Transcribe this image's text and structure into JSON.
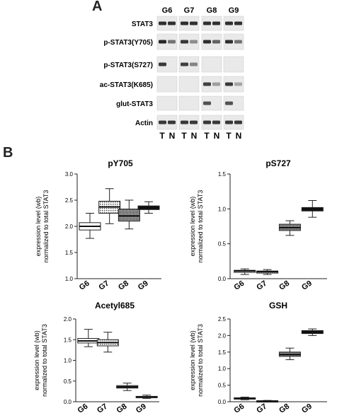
{
  "panel_a": {
    "letter": "A",
    "groups": [
      "G6",
      "G7",
      "G8",
      "G9"
    ],
    "rows": [
      "STAT3",
      "p-STAT3(Y705)",
      "p-STAT3(S727)",
      "ac-STAT3(K685)",
      "glut-STAT3",
      "Actin"
    ],
    "lane_labels": [
      [
        "T",
        "N"
      ],
      [
        "T",
        "N"
      ],
      [
        "T",
        "N"
      ],
      [
        "T",
        "N"
      ]
    ]
  },
  "panel_b": {
    "letter": "B"
  },
  "chart_data": [
    {
      "type": "box",
      "title": "pY705",
      "ylabel_line1": "expression level (wb)",
      "ylabel_line2": "normalized to total STAT3",
      "categories": [
        "G6",
        "G7",
        "G8",
        "G9"
      ],
      "ylim": [
        1.0,
        3.0
      ],
      "yticks": [
        "1.0",
        "1.5",
        "2.0",
        "2.5",
        "3.0"
      ],
      "boxes": [
        {
          "min": 1.77,
          "q1": 1.93,
          "median": 2.0,
          "q3": 2.07,
          "max": 2.25
        },
        {
          "min": 2.05,
          "q1": 2.25,
          "median": 2.37,
          "q3": 2.48,
          "max": 2.72
        },
        {
          "min": 1.95,
          "q1": 2.1,
          "median": 2.2,
          "q3": 2.33,
          "max": 2.5
        },
        {
          "min": 2.25,
          "q1": 2.32,
          "median": 2.36,
          "q3": 2.39,
          "max": 2.47
        }
      ]
    },
    {
      "type": "box",
      "title": "pS727",
      "ylabel_line1": "expression level (wb)",
      "ylabel_line2": "normalized to total STAT3",
      "categories": [
        "G6",
        "G7",
        "G8",
        "G9"
      ],
      "ylim": [
        0.0,
        1.5
      ],
      "yticks": [
        "0.0",
        "0.5",
        "1.0",
        "1.5"
      ],
      "boxes": [
        {
          "min": 0.06,
          "q1": 0.09,
          "median": 0.11,
          "q3": 0.12,
          "max": 0.14
        },
        {
          "min": 0.06,
          "q1": 0.08,
          "median": 0.1,
          "q3": 0.11,
          "max": 0.13
        },
        {
          "min": 0.62,
          "q1": 0.69,
          "median": 0.73,
          "q3": 0.78,
          "max": 0.83
        },
        {
          "min": 0.88,
          "q1": 0.97,
          "median": 1.0,
          "q3": 1.02,
          "max": 1.12
        }
      ]
    },
    {
      "type": "box",
      "title": "Acetyl685",
      "ylabel_line1": "expression level (wb)",
      "ylabel_line2": "normalized to total STAT3",
      "categories": [
        "G6",
        "G7",
        "G8",
        "G9"
      ],
      "ylim": [
        0.0,
        2.0
      ],
      "yticks": [
        "0.0",
        "0.5",
        "1.0",
        "1.5",
        "2.0"
      ],
      "boxes": [
        {
          "min": 1.33,
          "q1": 1.42,
          "median": 1.47,
          "q3": 1.53,
          "max": 1.75
        },
        {
          "min": 1.2,
          "q1": 1.35,
          "median": 1.43,
          "q3": 1.5,
          "max": 1.68
        },
        {
          "min": 0.27,
          "q1": 0.33,
          "median": 0.36,
          "q3": 0.39,
          "max": 0.45
        },
        {
          "min": 0.08,
          "q1": 0.1,
          "median": 0.12,
          "q3": 0.13,
          "max": 0.16
        }
      ]
    },
    {
      "type": "box",
      "title": "GSH",
      "ylabel_line1": "expression level (wb)",
      "ylabel_line2": "normalized to total STAT3",
      "categories": [
        "G6",
        "G7",
        "G8",
        "G9"
      ],
      "ylim": [
        0.0,
        2.5
      ],
      "yticks": [
        "0.0",
        "0.5",
        "1.0",
        "1.5",
        "2.0",
        "2.5"
      ],
      "boxes": [
        {
          "min": 0.06,
          "q1": 0.08,
          "median": 0.1,
          "q3": 0.12,
          "max": 0.14
        },
        {
          "min": 0.0,
          "q1": 0.01,
          "median": 0.02,
          "q3": 0.03,
          "max": 0.04
        },
        {
          "min": 1.27,
          "q1": 1.37,
          "median": 1.43,
          "q3": 1.5,
          "max": 1.62
        },
        {
          "min": 2.0,
          "q1": 2.06,
          "median": 2.1,
          "q3": 2.15,
          "max": 2.2
        }
      ]
    }
  ]
}
